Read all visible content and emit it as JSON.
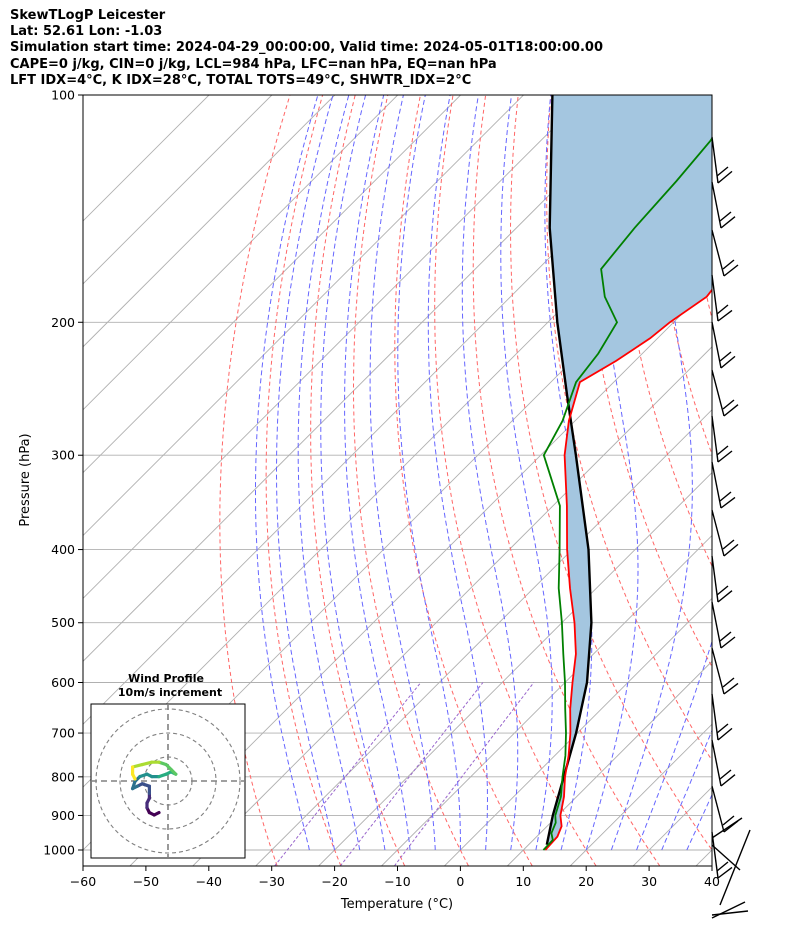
{
  "header": {
    "line1": "SkewTLogP Leicester",
    "line2": "Lat: 52.61   Lon: -1.03",
    "line3": "Simulation start time: 2024-04-29_00:00:00, Valid time: 2024-05-01T18:00:00.00",
    "line4": "CAPE=0 j/kg, CIN=0 j/kg, LCL=984 hPa, LFC=nan hPa, EQ=nan hPa",
    "line5": "LFT IDX=4°C, K IDX=28°C, TOTAL TOTS=49°C, SHWTR_IDX=2°C"
  },
  "colors": {
    "temperature": "#ff0000",
    "dewpoint": "#008000",
    "parcel": "#000000",
    "fill": "#a4c6e0",
    "dry_adiabat": "#ff6666",
    "moist_adiabat": "#6666ff",
    "mixing_ratio": "#9966cc",
    "isotherm": "#b0b0b0"
  },
  "chart_data": {
    "type": "line",
    "title": "",
    "xlabel": "Temperature (°C)",
    "ylabel": "Pressure (hPa)",
    "xlim": [
      -60,
      40
    ],
    "ylim": [
      1050,
      100
    ],
    "yscale": "log",
    "skew": true,
    "grid": true,
    "x_ticks": [
      "−60",
      "−50",
      "−40",
      "−30",
      "−20",
      "−10",
      "0",
      "10",
      "20",
      "30",
      "40"
    ],
    "y_ticks": [
      "100",
      "200",
      "300",
      "400",
      "500",
      "600",
      "700",
      "800",
      "900",
      "1000"
    ],
    "x_tick_values": [
      -60,
      -50,
      -40,
      -30,
      -20,
      -10,
      0,
      10,
      20,
      30,
      40
    ],
    "y_tick_values": [
      100,
      200,
      300,
      400,
      500,
      600,
      700,
      800,
      900,
      1000
    ],
    "series": [
      {
        "key": "temperature",
        "pressure": [
          1000,
          960,
          930,
          900,
          850,
          800,
          750,
          700,
          650,
          600,
          550,
          500,
          450,
          400,
          350,
          300,
          270,
          240,
          225,
          210,
          200,
          185,
          170,
          155,
          145,
          135,
          125,
          115,
          100
        ],
        "values": [
          13.5,
          13.3,
          12.3,
          10.4,
          8.0,
          5.0,
          2.2,
          -1.1,
          -5.0,
          -8.8,
          -12.8,
          -18.0,
          -24.2,
          -30.8,
          -37.8,
          -46.2,
          -51.0,
          -55.4,
          -53.0,
          -51.2,
          -50.6,
          -48.8,
          -49.8,
          -51.8,
          -53.2,
          -54.4,
          -55.6,
          -57.4,
          -61.3
        ]
      },
      {
        "key": "dewpoint",
        "pressure": [
          1000,
          970,
          950,
          920,
          900,
          850,
          800,
          750,
          700,
          650,
          600,
          550,
          500,
          450,
          400,
          350,
          300,
          270,
          240,
          220,
          200,
          185,
          170,
          150,
          130,
          115,
          100
        ],
        "values": [
          13.2,
          13.1,
          11.8,
          10.8,
          9.6,
          7.5,
          4.6,
          1.7,
          -1.8,
          -5.8,
          -10.0,
          -14.8,
          -20.0,
          -26.0,
          -32.0,
          -38.9,
          -49.5,
          -52.0,
          -56.0,
          -57.0,
          -59.0,
          -65.0,
          -70.0,
          -71.2,
          -72.0,
          -73.0,
          -75.3
        ]
      },
      {
        "key": "parcel",
        "pressure": [
          984,
          900,
          800,
          700,
          600,
          500,
          400,
          300,
          250,
          200,
          150,
          100
        ],
        "values": [
          12.9,
          9.2,
          4.8,
          -0.2,
          -6.5,
          -15.3,
          -27.4,
          -44.4,
          -55.3,
          -68.5,
          -84.7,
          -105.4
        ]
      }
    ],
    "wind_profile": {
      "title": "Wind Profile",
      "subtitle": "10m/s increment",
      "hodograph_u": [
        5,
        3,
        1,
        0,
        0,
        1,
        1,
        1,
        -2,
        -4,
        -6,
        -5,
        -3,
        0,
        2,
        5,
        8,
        10,
        12,
        10,
        8,
        5,
        2,
        -2,
        -6,
        -6,
        -5
      ],
      "hodograph_v": [
        -9,
        -10,
        -9,
        -7,
        -5,
        -3,
        -1,
        2,
        3,
        2,
        1,
        4,
        6,
        7,
        6,
        6,
        7,
        8,
        7,
        9,
        11,
        12,
        12,
        11,
        10,
        7,
        5
      ]
    }
  }
}
